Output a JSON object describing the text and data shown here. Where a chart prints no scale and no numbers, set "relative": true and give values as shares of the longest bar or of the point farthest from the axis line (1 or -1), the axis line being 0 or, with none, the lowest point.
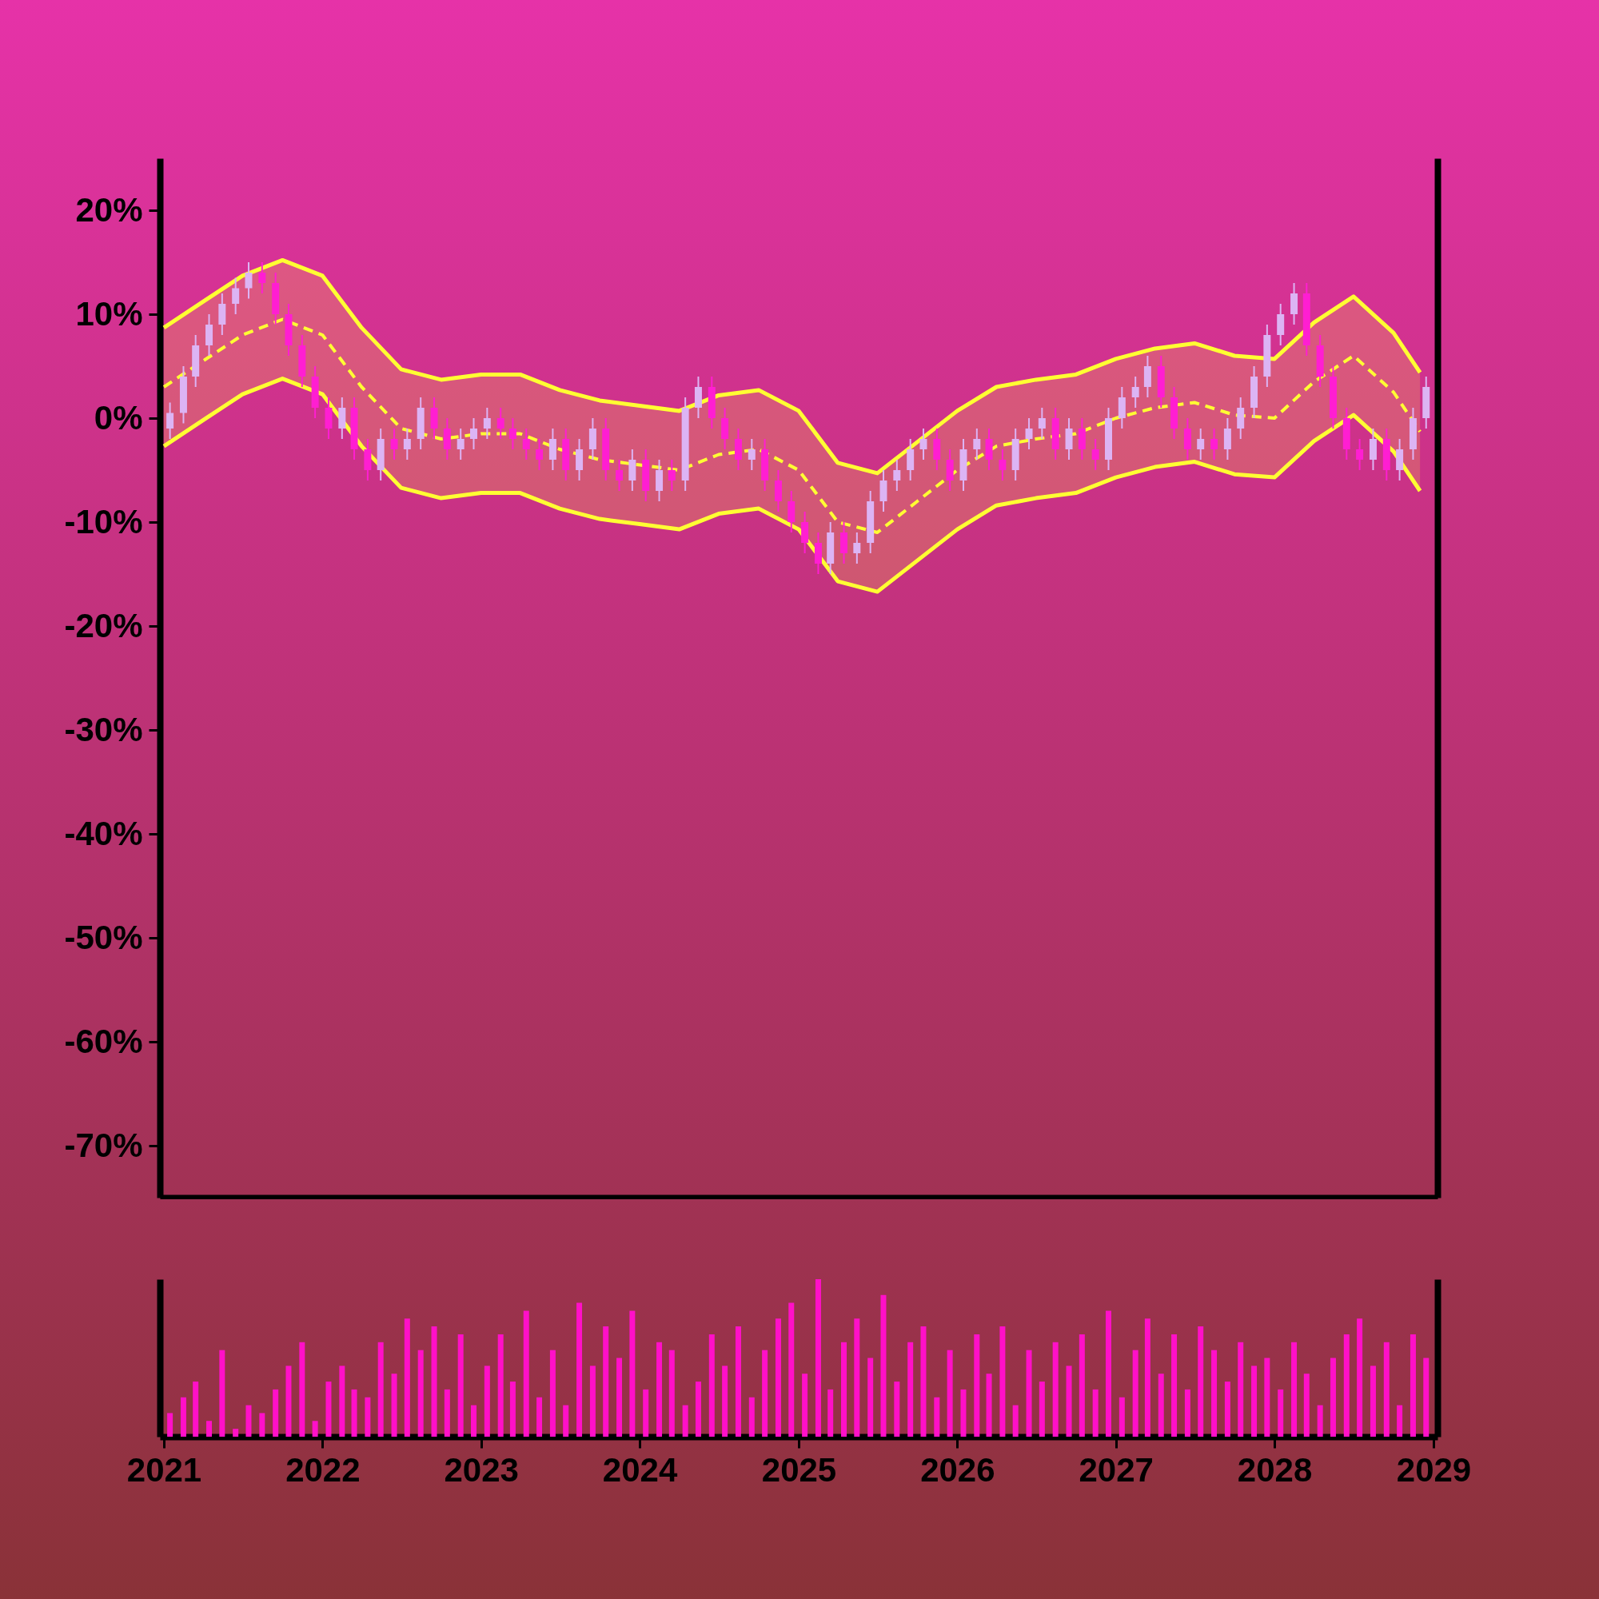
{
  "chart_data": [
    {
      "type": "candlestick",
      "xlim": [
        "2021-01",
        "2029-01"
      ],
      "ylim": [
        -75,
        25
      ],
      "yticks": [
        {
          "value": 20,
          "label": "20%"
        },
        {
          "value": 10,
          "label": "10%"
        },
        {
          "value": 0,
          "label": "0%"
        },
        {
          "value": -10,
          "label": "-10%"
        },
        {
          "value": -20,
          "label": "-20%"
        },
        {
          "value": -30,
          "label": "-30%"
        },
        {
          "value": -40,
          "label": "-40%"
        },
        {
          "value": -50,
          "label": "-50%"
        },
        {
          "value": -60,
          "label": "-60%"
        },
        {
          "value": -70,
          "label": "-70%"
        }
      ],
      "tick_labels": "y",
      "x": [
        "2021-01-15",
        "2021-02-15",
        "2021-03-15",
        "2021-04-15",
        "2021-05-15",
        "2021-06-15",
        "2021-07-15",
        "2021-08-15",
        "2021-09-15",
        "2021-10-15",
        "2021-11-15",
        "2021-12-15",
        "2022-01-15",
        "2022-02-15",
        "2022-03-15",
        "2022-04-15",
        "2022-05-15",
        "2022-06-15",
        "2022-07-15",
        "2022-08-15",
        "2022-09-15",
        "2022-10-15",
        "2022-11-15",
        "2022-12-15",
        "2023-01-15",
        "2023-02-15",
        "2023-03-15",
        "2023-04-15",
        "2023-05-15",
        "2023-06-15",
        "2023-07-15",
        "2023-08-15",
        "2023-09-15",
        "2023-10-15",
        "2023-11-15",
        "2023-12-15",
        "2024-01-15",
        "2024-02-15",
        "2024-03-15",
        "2024-04-15",
        "2024-05-15",
        "2024-06-15",
        "2024-07-15",
        "2024-08-15",
        "2024-09-15",
        "2024-10-15",
        "2024-11-15",
        "2024-12-15",
        "2025-01-15",
        "2025-02-15",
        "2025-03-15",
        "2025-04-15",
        "2025-05-15",
        "2025-06-15",
        "2025-07-15",
        "2025-08-15",
        "2025-09-15",
        "2025-10-15",
        "2025-11-15",
        "2025-12-15",
        "2026-01-15",
        "2026-02-15",
        "2026-03-15",
        "2026-04-15",
        "2026-05-15",
        "2026-06-15",
        "2026-07-15",
        "2026-08-15",
        "2026-09-15",
        "2026-10-15",
        "2026-11-15",
        "2026-12-15",
        "2027-01-15",
        "2027-02-15",
        "2027-03-15",
        "2027-04-15",
        "2027-05-15",
        "2027-06-15",
        "2027-07-15",
        "2027-08-15",
        "2027-09-15",
        "2027-10-15",
        "2027-11-15",
        "2027-12-15",
        "2028-01-15",
        "2028-02-15",
        "2028-03-15",
        "2028-04-15",
        "2028-05-15",
        "2028-06-15",
        "2028-07-15",
        "2028-08-15",
        "2028-09-15",
        "2028-10-15",
        "2028-11-15",
        "2028-12-15"
      ],
      "ohlc": [
        [
          -1,
          1.5,
          -2,
          0.5
        ],
        [
          0.5,
          5,
          -0.5,
          4
        ],
        [
          4,
          8,
          3,
          7
        ],
        [
          7,
          10,
          6,
          9
        ],
        [
          9,
          12,
          8,
          11
        ],
        [
          11,
          13.5,
          10,
          12.5
        ],
        [
          12.5,
          15,
          11.5,
          14
        ],
        [
          14,
          15,
          12,
          13
        ],
        [
          13,
          14,
          9,
          10
        ],
        [
          10,
          11,
          6,
          7
        ],
        [
          7,
          8,
          3,
          4
        ],
        [
          4,
          5,
          0,
          1
        ],
        [
          1,
          2,
          -2,
          -1
        ],
        [
          -1,
          2,
          -2,
          1
        ],
        [
          1,
          2,
          -4,
          -3
        ],
        [
          -3,
          -2,
          -6,
          -5
        ],
        [
          -5,
          -1,
          -6,
          -2
        ],
        [
          -2,
          -1,
          -4,
          -3
        ],
        [
          -3,
          -1,
          -4,
          -2
        ],
        [
          -2,
          2,
          -3,
          1
        ],
        [
          1,
          2,
          -2,
          -1
        ],
        [
          -1,
          0,
          -4,
          -3
        ],
        [
          -3,
          -1,
          -4,
          -2
        ],
        [
          -2,
          0,
          -3,
          -1
        ],
        [
          -1,
          1,
          -2,
          0
        ],
        [
          0,
          1,
          -2,
          -1
        ],
        [
          -1,
          0,
          -3,
          -2
        ],
        [
          -2,
          -1,
          -4,
          -3
        ],
        [
          -3,
          -2,
          -5,
          -4
        ],
        [
          -4,
          -1,
          -5,
          -2
        ],
        [
          -2,
          -1,
          -6,
          -5
        ],
        [
          -5,
          -2,
          -6,
          -3
        ],
        [
          -3,
          0,
          -4,
          -1
        ],
        [
          -1,
          0,
          -6,
          -5
        ],
        [
          -5,
          -4,
          -7,
          -6
        ],
        [
          -6,
          -3,
          -7,
          -4
        ],
        [
          -4,
          -3,
          -8,
          -7
        ],
        [
          -7,
          -4,
          -8,
          -5
        ],
        [
          -5,
          -4,
          -7,
          -6
        ],
        [
          -6,
          2,
          -7,
          1
        ],
        [
          1,
          4,
          0,
          3
        ],
        [
          3,
          4,
          -1,
          0
        ],
        [
          0,
          1,
          -3,
          -2
        ],
        [
          -2,
          -1,
          -5,
          -4
        ],
        [
          -4,
          -2,
          -5,
          -3
        ],
        [
          -3,
          -2,
          -7,
          -6
        ],
        [
          -6,
          -5,
          -9,
          -8
        ],
        [
          -8,
          -7,
          -11,
          -10
        ],
        [
          -10,
          -9,
          -13,
          -12
        ],
        [
          -12,
          -11,
          -15,
          -14
        ],
        [
          -14,
          -10,
          -15,
          -11
        ],
        [
          -11,
          -10,
          -14,
          -13
        ],
        [
          -13,
          -11,
          -14,
          -12
        ],
        [
          -12,
          -7,
          -13,
          -8
        ],
        [
          -8,
          -5,
          -9,
          -6
        ],
        [
          -6,
          -4,
          -7,
          -5
        ],
        [
          -5,
          -2,
          -6,
          -3
        ],
        [
          -3,
          -1,
          -4,
          -2
        ],
        [
          -2,
          -1,
          -5,
          -4
        ],
        [
          -4,
          -3,
          -7,
          -6
        ],
        [
          -6,
          -2,
          -7,
          -3
        ],
        [
          -3,
          -1,
          -4,
          -2
        ],
        [
          -2,
          -1,
          -5,
          -4
        ],
        [
          -4,
          -3,
          -6,
          -5
        ],
        [
          -5,
          -1,
          -6,
          -2
        ],
        [
          -2,
          0,
          -3,
          -1
        ],
        [
          -1,
          1,
          -2,
          0
        ],
        [
          0,
          1,
          -4,
          -3
        ],
        [
          -3,
          0,
          -4,
          -1
        ],
        [
          -1,
          0,
          -4,
          -3
        ],
        [
          -3,
          -2,
          -5,
          -4
        ],
        [
          -4,
          1,
          -5,
          0
        ],
        [
          0,
          3,
          -1,
          2
        ],
        [
          2,
          4,
          1,
          3
        ],
        [
          3,
          6,
          2,
          5
        ],
        [
          5,
          6,
          1,
          2
        ],
        [
          2,
          3,
          -2,
          -1
        ],
        [
          -1,
          0,
          -4,
          -3
        ],
        [
          -3,
          -1,
          -4,
          -2
        ],
        [
          -2,
          -1,
          -4,
          -3
        ],
        [
          -3,
          0,
          -4,
          -1
        ],
        [
          -1,
          2,
          -2,
          1
        ],
        [
          1,
          5,
          0,
          4
        ],
        [
          4,
          9,
          3,
          8
        ],
        [
          8,
          11,
          7,
          10
        ],
        [
          10,
          13,
          9,
          12
        ],
        [
          12,
          13,
          6,
          7
        ],
        [
          7,
          8,
          3,
          4
        ],
        [
          4,
          5,
          -1,
          0
        ],
        [
          0,
          1,
          -4,
          -3
        ],
        [
          -3,
          -2,
          -5,
          -4
        ],
        [
          -4,
          -1,
          -5,
          -2
        ],
        [
          -2,
          -1,
          -6,
          -5
        ],
        [
          -5,
          -2,
          -6,
          -3
        ],
        [
          -3,
          1,
          -4,
          0
        ],
        [
          0,
          4,
          -1,
          3
        ]
      ],
      "colors": [
        "#dcb4f4",
        "#dcb4f4",
        "#dcb4f4",
        "#dcb4f4",
        "#dcb4f4",
        "#dcb4f4",
        "#dcb4f4",
        "#ff1ed2",
        "#ff1ed2",
        "#ff1ed2",
        "#ff1ed2",
        "#ff1ed2",
        "#ff1ed2",
        "#dcb4f4",
        "#ff1ed2",
        "#ff1ed2",
        "#dcb4f4",
        "#ff1ed2",
        "#dcb4f4",
        "#dcb4f4",
        "#ff1ed2",
        "#ff1ed2",
        "#dcb4f4",
        "#dcb4f4",
        "#dcb4f4",
        "#ff1ed2",
        "#ff1ed2",
        "#ff1ed2",
        "#ff1ed2",
        "#dcb4f4",
        "#ff1ed2",
        "#dcb4f4",
        "#dcb4f4",
        "#ff1ed2",
        "#ff1ed2",
        "#dcb4f4",
        "#ff1ed2",
        "#dcb4f4",
        "#ff1ed2",
        "#dcb4f4",
        "#dcb4f4",
        "#ff1ed2",
        "#ff1ed2",
        "#ff1ed2",
        "#dcb4f4",
        "#ff1ed2",
        "#ff1ed2",
        "#ff1ed2",
        "#ff1ed2",
        "#ff1ed2",
        "#dcb4f4",
        "#ff1ed2",
        "#dcb4f4",
        "#dcb4f4",
        "#dcb4f4",
        "#dcb4f4",
        "#dcb4f4",
        "#dcb4f4",
        "#ff1ed2",
        "#ff1ed2",
        "#dcb4f4",
        "#dcb4f4",
        "#ff1ed2",
        "#ff1ed2",
        "#dcb4f4",
        "#dcb4f4",
        "#dcb4f4",
        "#ff1ed2",
        "#dcb4f4",
        "#ff1ed2",
        "#ff1ed2",
        "#dcb4f4",
        "#dcb4f4",
        "#dcb4f4",
        "#dcb4f4",
        "#ff1ed2",
        "#ff1ed2",
        "#ff1ed2",
        "#dcb4f4",
        "#ff1ed2",
        "#dcb4f4",
        "#dcb4f4",
        "#dcb4f4",
        "#dcb4f4",
        "#dcb4f4",
        "#dcb4f4",
        "#ff1ed2",
        "#ff1ed2",
        "#ff1ed2",
        "#ff1ed2",
        "#ff1ed2",
        "#dcb4f4",
        "#ff1ed2",
        "#dcb4f4",
        "#dcb4f4",
        "#dcb4f4"
      ],
      "series": [
        {
          "type": "line",
          "color": "#ffff33",
          "line_style": "solid",
          "x": [
            "2021-01",
            "2021-04",
            "2021-07",
            "2021-10",
            "2022-01",
            "2022-04",
            "2022-07",
            "2022-10",
            "2023-01",
            "2023-04",
            "2023-07",
            "2023-10",
            "2024-01",
            "2024-04",
            "2024-07",
            "2024-10",
            "2025-01",
            "2025-04",
            "2025-07",
            "2025-10",
            "2026-01",
            "2026-04",
            "2026-07",
            "2026-10",
            "2027-01",
            "2027-04",
            "2027-07",
            "2027-10",
            "2028-01",
            "2028-04",
            "2028-07",
            "2028-10",
            "2028-12"
          ],
          "values": [
            8.7,
            11.2,
            13.7,
            15.2,
            13.7,
            8.7,
            4.7,
            3.7,
            4.2,
            4.2,
            2.7,
            1.7,
            1.2,
            0.7,
            2.2,
            2.7,
            0.7,
            -4.3,
            -5.3,
            -2.3,
            0.7,
            3,
            3.7,
            4.2,
            5.7,
            6.7,
            7.2,
            6,
            5.7,
            9.2,
            11.7,
            8.2,
            4.4
          ]
        },
        {
          "type": "line",
          "color": "#ffff33",
          "line_style": "dashed",
          "x": [
            "2021-01",
            "2021-04",
            "2021-07",
            "2021-10",
            "2022-01",
            "2022-04",
            "2022-07",
            "2022-10",
            "2023-01",
            "2023-04",
            "2023-07",
            "2023-10",
            "2024-01",
            "2024-04",
            "2024-07",
            "2024-10",
            "2025-01",
            "2025-04",
            "2025-07",
            "2025-10",
            "2026-01",
            "2026-04",
            "2026-07",
            "2026-10",
            "2027-01",
            "2027-04",
            "2027-07",
            "2027-10",
            "2028-01",
            "2028-04",
            "2028-07",
            "2028-10",
            "2028-12"
          ],
          "values": [
            3,
            5.5,
            8,
            9.5,
            8,
            3,
            -1,
            -2,
            -1.5,
            -1.5,
            -3,
            -4,
            -4.5,
            -5,
            -3.5,
            -3,
            -5,
            -10,
            -11,
            -8,
            -5,
            -2.7,
            -2,
            -1.5,
            0,
            1,
            1.5,
            0.3,
            0,
            3.5,
            6,
            2.5,
            -1.3
          ],
          "upper": [
            8.7,
            11.2,
            13.7,
            15.2,
            13.7,
            8.7,
            4.7,
            3.7,
            4.2,
            4.2,
            2.7,
            1.7,
            1.2,
            0.7,
            2.2,
            2.7,
            0.7,
            -4.3,
            -5.3,
            -2.3,
            0.7,
            3,
            3.7,
            4.2,
            5.7,
            6.7,
            7.2,
            6,
            5.7,
            9.2,
            11.7,
            8.2,
            4.4
          ],
          "lower": [
            -2.7,
            -0.2,
            2.3,
            3.8,
            2.3,
            -2.7,
            -6.7,
            -7.7,
            -7.2,
            -7.2,
            -8.7,
            -9.7,
            -10.2,
            -10.7,
            -9.2,
            -8.7,
            -10.7,
            -15.7,
            -16.7,
            -13.7,
            -10.7,
            -8.4,
            -7.7,
            -7.2,
            -5.7,
            -4.7,
            -4.2,
            -5.4,
            -5.7,
            -2.2,
            0.3,
            -3.2,
            -7
          ]
        },
        {
          "type": "line",
          "color": "#ffff33",
          "line_style": "solid",
          "x": [
            "2021-01",
            "2021-04",
            "2021-07",
            "2021-10",
            "2022-01",
            "2022-04",
            "2022-07",
            "2022-10",
            "2023-01",
            "2023-04",
            "2023-07",
            "2023-10",
            "2024-01",
            "2024-04",
            "2024-07",
            "2024-10",
            "2025-01",
            "2025-04",
            "2025-07",
            "2025-10",
            "2026-01",
            "2026-04",
            "2026-07",
            "2026-10",
            "2027-01",
            "2027-04",
            "2027-07",
            "2027-10",
            "2028-01",
            "2028-04",
            "2028-07",
            "2028-10",
            "2028-12"
          ],
          "values": [
            -2.7,
            -0.2,
            2.3,
            3.8,
            2.3,
            -2.7,
            -6.7,
            -7.7,
            -7.2,
            -7.2,
            -8.7,
            -9.7,
            -10.2,
            -10.7,
            -9.2,
            -8.7,
            -10.7,
            -15.7,
            -16.7,
            -13.7,
            -10.7,
            -8.4,
            -7.7,
            -7.2,
            -5.7,
            -4.7,
            -4.2,
            -5.4,
            -5.7,
            -2.2,
            0.3,
            -3.2,
            -7
          ]
        }
      ]
    },
    {
      "type": "bar",
      "relative": true,
      "color": "#ff10c8",
      "xlim": [
        "2021-01",
        "2029-01"
      ],
      "xticks": [
        "2021",
        "2022",
        "2023",
        "2024",
        "2025",
        "2026",
        "2027",
        "2028",
        "2029"
      ],
      "tick_labels": "x",
      "x": [
        "2021-01-15",
        "2021-02-15",
        "2021-03-15",
        "2021-04-15",
        "2021-05-15",
        "2021-06-15",
        "2021-07-15",
        "2021-08-15",
        "2021-09-15",
        "2021-10-15",
        "2021-11-15",
        "2021-12-15",
        "2022-01-15",
        "2022-02-15",
        "2022-03-15",
        "2022-04-15",
        "2022-05-15",
        "2022-06-15",
        "2022-07-15",
        "2022-08-15",
        "2022-09-15",
        "2022-10-15",
        "2022-11-15",
        "2022-12-15",
        "2023-01-15",
        "2023-02-15",
        "2023-03-15",
        "2023-04-15",
        "2023-05-15",
        "2023-06-15",
        "2023-07-15",
        "2023-08-15",
        "2023-09-15",
        "2023-10-15",
        "2023-11-15",
        "2023-12-15",
        "2024-01-15",
        "2024-02-15",
        "2024-03-15",
        "2024-04-15",
        "2024-05-15",
        "2024-06-15",
        "2024-07-15",
        "2024-08-15",
        "2024-09-15",
        "2024-10-15",
        "2024-11-15",
        "2024-12-15",
        "2025-01-15",
        "2025-02-15",
        "2025-03-15",
        "2025-04-15",
        "2025-05-15",
        "2025-06-15",
        "2025-07-15",
        "2025-08-15",
        "2025-09-15",
        "2025-10-15",
        "2025-11-15",
        "2025-12-15",
        "2026-01-15",
        "2026-02-15",
        "2026-03-15",
        "2026-04-15",
        "2026-05-15",
        "2026-06-15",
        "2026-07-15",
        "2026-08-15",
        "2026-09-15",
        "2026-10-15",
        "2026-11-15",
        "2026-12-15",
        "2027-01-15",
        "2027-02-15",
        "2027-03-15",
        "2027-04-15",
        "2027-05-15",
        "2027-06-15",
        "2027-07-15",
        "2027-08-15",
        "2027-09-15",
        "2027-10-15",
        "2027-11-15",
        "2027-12-15",
        "2028-01-15",
        "2028-02-15",
        "2028-03-15",
        "2028-04-15",
        "2028-05-15",
        "2028-06-15",
        "2028-07-15",
        "2028-08-15",
        "2028-09-15",
        "2028-10-15",
        "2028-11-15",
        "2028-12-15"
      ],
      "values": [
        0.15,
        0.25,
        0.35,
        0.1,
        0.55,
        0.05,
        0.2,
        0.15,
        0.3,
        0.45,
        0.6,
        0.1,
        0.35,
        0.45,
        0.3,
        0.25,
        0.6,
        0.4,
        0.75,
        0.55,
        0.7,
        0.3,
        0.65,
        0.2,
        0.45,
        0.65,
        0.35,
        0.8,
        0.25,
        0.55,
        0.2,
        0.85,
        0.45,
        0.7,
        0.5,
        0.8,
        0.3,
        0.6,
        0.55,
        0.2,
        0.35,
        0.65,
        0.45,
        0.7,
        0.25,
        0.55,
        0.75,
        0.85,
        0.4,
        1,
        0.3,
        0.6,
        0.75,
        0.5,
        0.9,
        0.35,
        0.6,
        0.7,
        0.25,
        0.55,
        0.3,
        0.65,
        0.4,
        0.7,
        0.2,
        0.55,
        0.35,
        0.6,
        0.45,
        0.65,
        0.3,
        0.8,
        0.25,
        0.55,
        0.75,
        0.4,
        0.65,
        0.3,
        0.7,
        0.55,
        0.35,
        0.6,
        0.45,
        0.5,
        0.3,
        0.6,
        0.4,
        0.2,
        0.5,
        0.65,
        0.75,
        0.45,
        0.6,
        0.2,
        0.65,
        0.5
      ]
    }
  ]
}
